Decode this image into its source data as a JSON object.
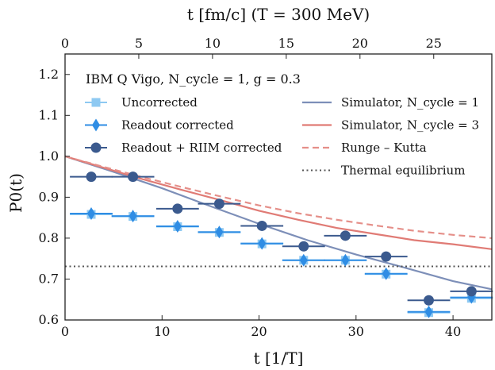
{
  "chart_data": {
    "type": "line",
    "title": "",
    "xlabel": "t  [1/T]",
    "ylabel": "P0(t)",
    "top_xlabel": "t  [fm/c] (T = 300 MeV)",
    "xlim": [
      0,
      44
    ],
    "ylim": [
      0.6,
      1.25
    ],
    "top_xlim": [
      0,
      28.94
    ],
    "x_ticks": [
      0,
      10,
      20,
      30,
      40
    ],
    "y_ticks": [
      0.6,
      0.7,
      0.8,
      0.9,
      1.0,
      1.1,
      1.2
    ],
    "top_x_ticks": [
      0,
      5,
      10,
      15,
      20,
      25
    ],
    "x_tick_labels": [
      "0",
      "10",
      "20",
      "30",
      "40"
    ],
    "y_tick_labels": [
      "0.6",
      "0.7",
      "0.8",
      "0.9",
      "1.0",
      "1.1",
      "1.2"
    ],
    "top_x_tick_labels": [
      "0",
      "5",
      "10",
      "15",
      "20",
      "25"
    ],
    "grid": false,
    "legend": {
      "title": "IBM Q Vigo, N_cycle = 1, g = 0.3",
      "placement": "top",
      "entries": [
        "Uncorrected",
        "Readout corrected",
        "Readout + RIIM corrected",
        "Simulator, N_cycle = 1",
        "Simulator, N_cycle = 3",
        "Runge – Kutta",
        "Thermal equilibrium"
      ]
    },
    "series": [
      {
        "name": "Uncorrected",
        "kind": "square-errorbar",
        "color": "#8ec9f2",
        "x": [
          2.7,
          7.0,
          11.6,
          15.9,
          20.3,
          24.6,
          28.9,
          33.1,
          37.5,
          41.9
        ],
        "y": [
          0.858,
          0.853,
          0.828,
          0.814,
          0.786,
          0.746,
          0.746,
          0.712,
          0.618,
          0.653
        ],
        "xerr": 2.2
      },
      {
        "name": "Readout corrected",
        "kind": "diamond-errorbar",
        "color": "#2f8de4",
        "x": [
          2.7,
          7.0,
          11.6,
          15.9,
          20.3,
          24.6,
          28.9,
          33.1,
          37.5,
          41.9
        ],
        "y": [
          0.86,
          0.854,
          0.829,
          0.815,
          0.787,
          0.746,
          0.746,
          0.713,
          0.62,
          0.655
        ],
        "xerr": 2.2
      },
      {
        "name": "Readout + RIIM corrected",
        "kind": "circle-errorbar",
        "color": "#3b5a8e",
        "x": [
          2.7,
          7.0,
          11.6,
          15.9,
          20.3,
          24.6,
          28.9,
          33.1,
          37.5,
          41.9
        ],
        "y": [
          0.95,
          0.95,
          0.872,
          0.884,
          0.83,
          0.78,
          0.806,
          0.755,
          0.648,
          0.67
        ],
        "xerr": 2.2
      },
      {
        "name": "Simulator, N_cycle = 1",
        "kind": "line",
        "color": "#7d8fb8",
        "x": [
          0,
          5,
          10,
          15,
          20,
          25,
          30,
          35,
          40,
          44
        ],
        "y": [
          1.0,
          0.962,
          0.922,
          0.878,
          0.835,
          0.795,
          0.76,
          0.728,
          0.695,
          0.675
        ]
      },
      {
        "name": "Simulator, N_cycle = 3",
        "kind": "line",
        "color": "#e07b75",
        "x": [
          0,
          4,
          8,
          12,
          16,
          20,
          24,
          28,
          32,
          36,
          40,
          44
        ],
        "y": [
          1.0,
          0.972,
          0.944,
          0.918,
          0.893,
          0.867,
          0.845,
          0.825,
          0.81,
          0.795,
          0.785,
          0.773
        ]
      },
      {
        "name": "Runge – Kutta",
        "kind": "dashed-line",
        "color": "#e58f89",
        "x": [
          0,
          4,
          8,
          12,
          16,
          20,
          24,
          28,
          32,
          36,
          40,
          44
        ],
        "y": [
          1.0,
          0.974,
          0.949,
          0.925,
          0.902,
          0.88,
          0.861,
          0.845,
          0.831,
          0.818,
          0.808,
          0.8
        ]
      },
      {
        "name": "Thermal equilibrium",
        "kind": "dotted-line",
        "color": "#555555",
        "x": [
          0,
          44
        ],
        "y": [
          0.731,
          0.731
        ]
      }
    ]
  }
}
